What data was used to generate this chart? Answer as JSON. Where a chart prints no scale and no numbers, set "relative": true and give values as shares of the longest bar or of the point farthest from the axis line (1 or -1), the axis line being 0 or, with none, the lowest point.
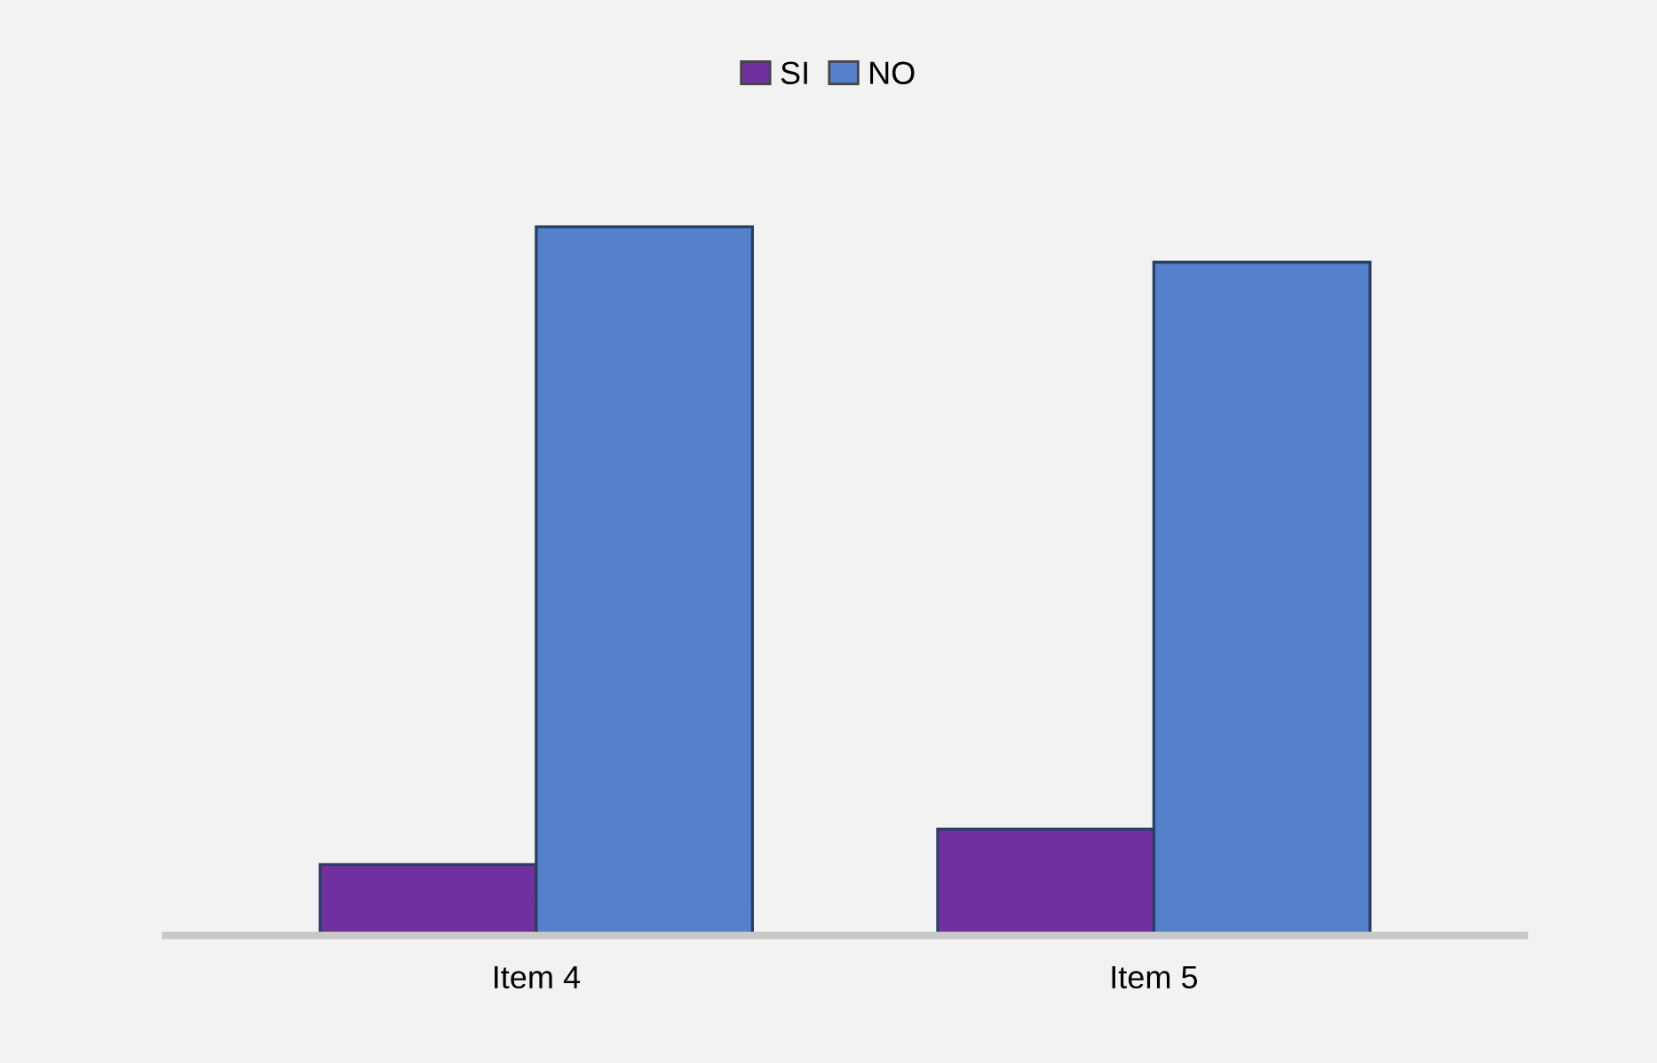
{
  "chart_data": {
    "type": "bar",
    "relative": true,
    "categories": [
      "Item 4",
      "Item 5"
    ],
    "series": [
      {
        "name": "SI",
        "color": "#7030a0",
        "values": [
          0.1,
          0.15
        ]
      },
      {
        "name": "NO",
        "color": "#5580cc",
        "values": [
          1,
          0.95
        ]
      }
    ],
    "legend": "top",
    "grid": false
  }
}
